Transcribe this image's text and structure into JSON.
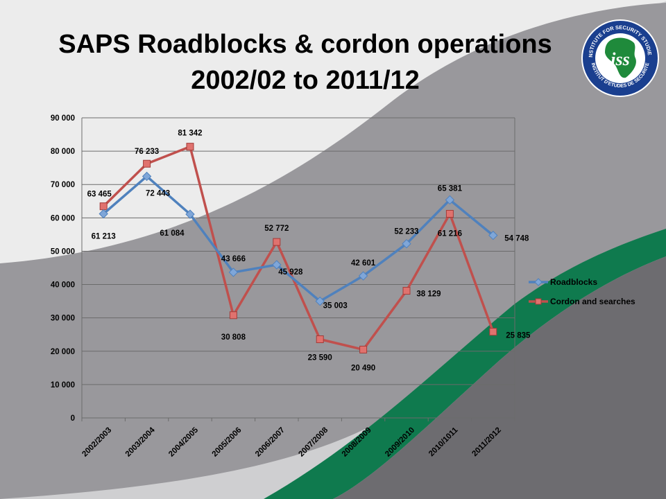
{
  "slide": {
    "title_line1": "SAPS Roadblocks & cordon operations",
    "title_line2": "2002/02 to 2011/12",
    "colors": {
      "accent_green": "#0f7a4e",
      "panel_grey": "#8e8d92",
      "dark_grey": "#6d6c70"
    }
  },
  "logo": {
    "text_top": "INSTITUTE FOR SECURITY STUDIES",
    "text_bottom": "INSTITUT D'ETUDES DE SECURITE",
    "monogram": "iss"
  },
  "chart_data": {
    "type": "line",
    "categories": [
      "2002/2003",
      "2003/2004",
      "2004/2005",
      "2005/2006",
      "2006/2007",
      "2007/2008",
      "2008/2009",
      "2009/2010",
      "2010/1011",
      "2011/2012"
    ],
    "ylim": [
      0,
      90000
    ],
    "yticks": [
      0,
      10000,
      20000,
      30000,
      40000,
      50000,
      60000,
      70000,
      80000,
      90000
    ],
    "ytick_labels": [
      "0",
      "10 000",
      "20 000",
      "30 000",
      "40 000",
      "50 000",
      "60 000",
      "70 000",
      "80 000",
      "90 000"
    ],
    "grid": true,
    "legend_position": "right",
    "series": [
      {
        "name": "Roadblocks",
        "color": "#4f81bd",
        "marker": "diamond",
        "values": [
          61213,
          72443,
          61084,
          43666,
          45928,
          35003,
          42601,
          52233,
          65381,
          54748
        ],
        "labels": [
          "61 213",
          "72 443",
          "61 084",
          "43 666",
          "45 928",
          "35 003",
          "42 601",
          "52 233",
          "65 381",
          "54 748"
        ]
      },
      {
        "name": "Cordon and searches",
        "color": "#c0504d",
        "marker": "square",
        "values": [
          63465,
          76233,
          81342,
          30808,
          52772,
          23590,
          20490,
          38129,
          61216,
          25835
        ],
        "labels": [
          "63 465",
          "76 233",
          "81 342",
          "30 808",
          "52 772",
          "23 590",
          "20 490",
          "38 129",
          "61 216",
          "25 835"
        ]
      }
    ]
  }
}
